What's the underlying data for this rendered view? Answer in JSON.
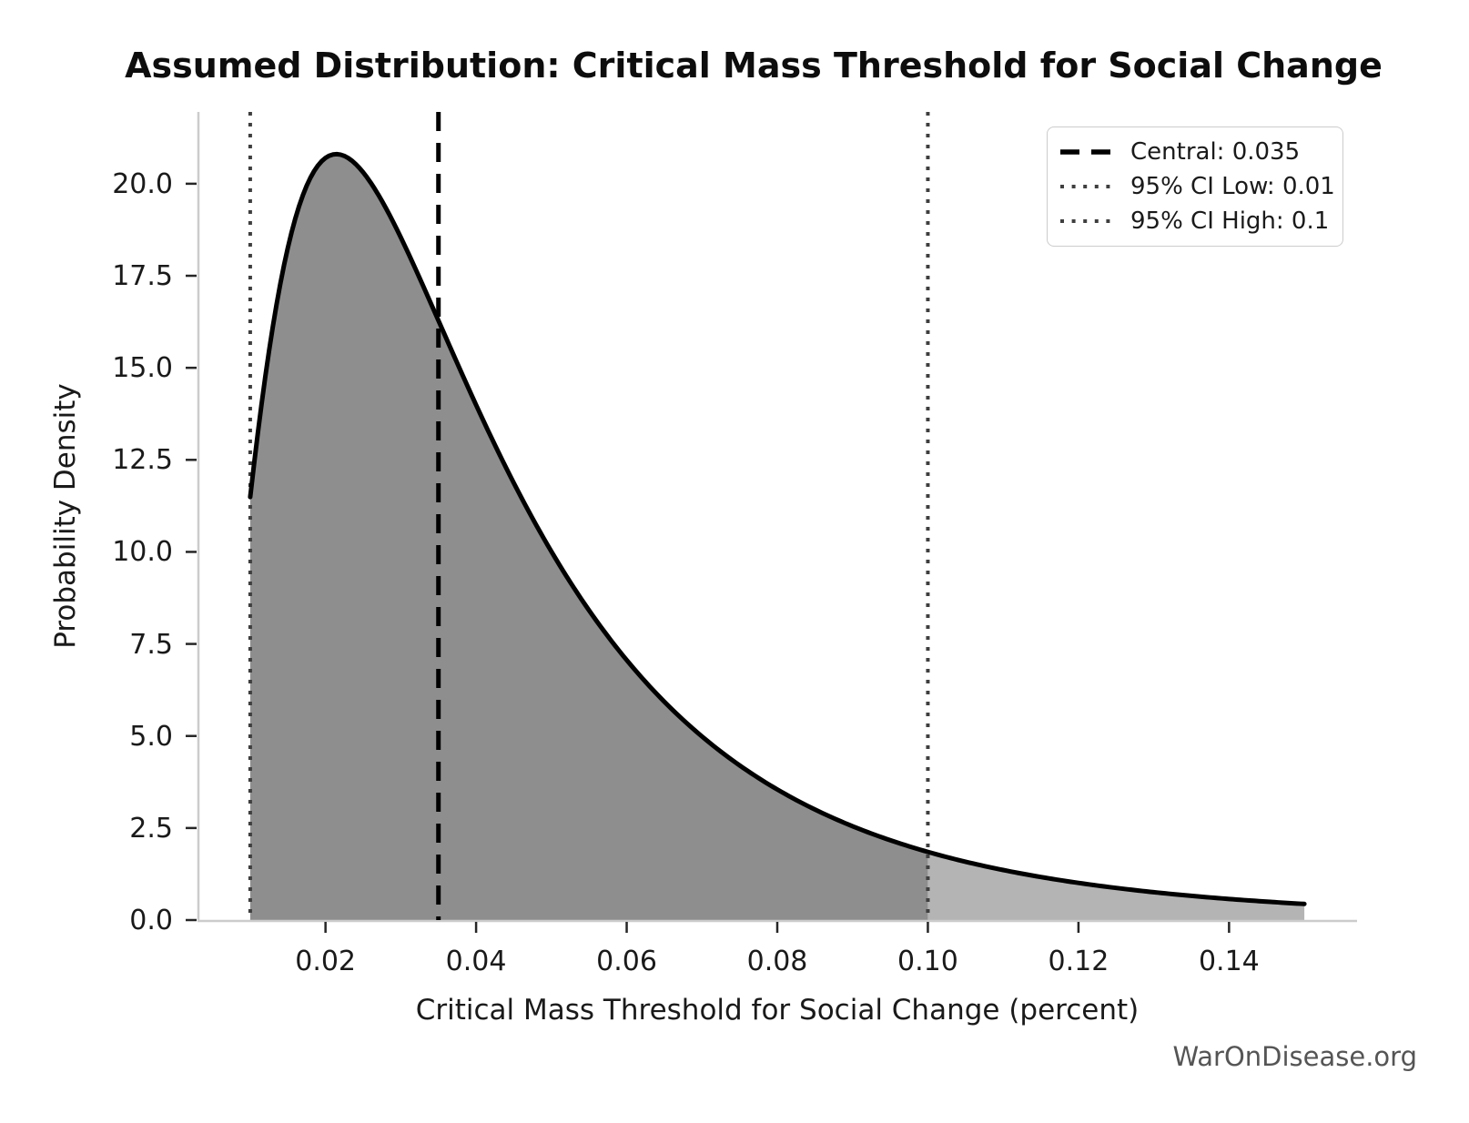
{
  "figure": {
    "title": "Assumed Distribution: Critical Mass Threshold for Social Change",
    "watermark": "WarOnDisease.org"
  },
  "chart_data": {
    "type": "area",
    "title": "Assumed Distribution: Critical Mass Threshold for Social Change",
    "xlabel": "Critical Mass Threshold for Social Change (percent)",
    "ylabel": "Probability Density",
    "grid": false,
    "xlim": [
      0.003,
      0.157
    ],
    "ylim": [
      0,
      21.95
    ],
    "xticks": {
      "values": [
        0.02,
        0.04,
        0.06,
        0.08,
        0.1,
        0.12,
        0.14
      ],
      "labels": [
        "0.02",
        "0.04",
        "0.06",
        "0.08",
        "0.10",
        "0.12",
        "0.14"
      ]
    },
    "yticks": {
      "values": [
        0,
        2.5,
        5,
        7.5,
        10,
        12.5,
        15,
        17.5,
        20
      ],
      "labels": [
        "0.0",
        "2.5",
        "5.0",
        "7.5",
        "10.0",
        "12.5",
        "15.0",
        "17.5",
        "20.0"
      ]
    },
    "legend": {
      "position": "upper right",
      "items": [
        {
          "label": "Central: 0.035",
          "style": "dashed",
          "color": "#000000"
        },
        {
          "label": "95% CI Low: 0.01",
          "style": "dotted",
          "color": "#3f3f3f"
        },
        {
          "label": "95% CI High: 0.1",
          "style": "dotted",
          "color": "#3f3f3f"
        }
      ]
    },
    "markers": {
      "central": 0.035,
      "ci_low": 0.01,
      "ci_high": 0.1
    },
    "distribution": {
      "family": "lognormal",
      "median": 0.035,
      "sigma": 0.7,
      "x_min": 0.01,
      "x_max": 0.15,
      "peak": {
        "x": 0.021,
        "y": 20.8
      }
    },
    "series_points": {
      "x": [
        0.01,
        0.015,
        0.02,
        0.021,
        0.025,
        0.03,
        0.035,
        0.04,
        0.045,
        0.05,
        0.06,
        0.07,
        0.08,
        0.09,
        0.1,
        0.11,
        0.12,
        0.13,
        0.14,
        0.15
      ],
      "pdf": [
        11.49,
        18.26,
        20.7,
        20.79,
        20.31,
        18.54,
        16.28,
        13.99,
        11.87,
        10.01,
        7.06,
        4.99,
        3.55,
        2.55,
        1.85,
        1.36,
        1.01,
        0.76,
        0.57,
        0.44
      ]
    },
    "colors": {
      "curve": "#000000",
      "fill_ci": "#8e8e8e",
      "fill_tail": "#b4b4b4",
      "central_line": "#000000",
      "ci_line": "#3f3f3f",
      "spine": "#cccccc",
      "tick": "#262626",
      "text": "#1a1a1a",
      "watermark": "#555555"
    }
  }
}
